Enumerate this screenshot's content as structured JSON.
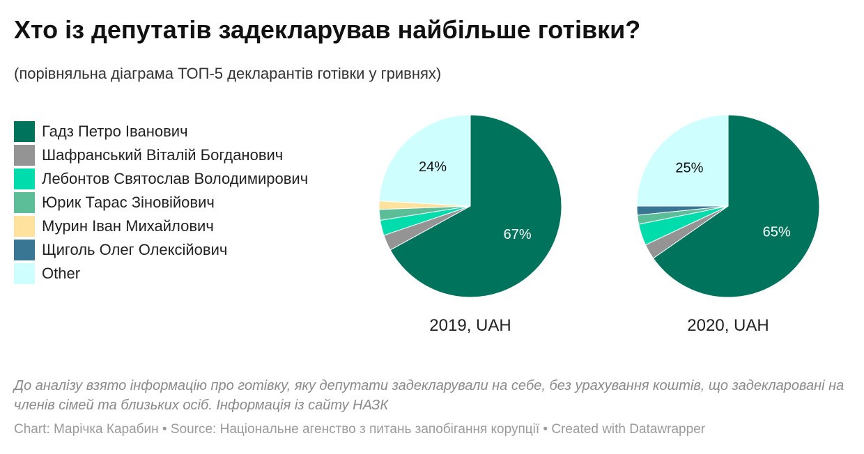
{
  "title": "Хто із депутатів задекларував найбільше готівки?",
  "subtitle": "(порівняльна діаграма ТОП-5 декларантів готівки у гривнях)",
  "legend": [
    {
      "label": "Гадз Петро Іванович",
      "color": "#00735c"
    },
    {
      "label": "Шафранський Віталій Богданович",
      "color": "#949494"
    },
    {
      "label": "Лебонтов Святослав Володимирович",
      "color": "#00dcab"
    },
    {
      "label": "Юрик Тарас Зіновійович",
      "color": "#5cbd99"
    },
    {
      "label": "Мурин Іван Михайлович",
      "color": "#ffe29d"
    },
    {
      "label": "Щиголь Олег Олексійович",
      "color": "#387693"
    },
    {
      "label": "Other",
      "color": "#cefefd"
    }
  ],
  "chart_data": [
    {
      "type": "pie",
      "title": "2019, UAH",
      "slices": [
        {
          "name": "Гадз Петро Іванович",
          "value": 67,
          "label": "67%"
        },
        {
          "name": "Шафранський Віталій Богданович",
          "value": 2.8
        },
        {
          "name": "Лебонтов Святослав Володимирович",
          "value": 2.7
        },
        {
          "name": "Юрик Тарас Зіновійович",
          "value": 1.9
        },
        {
          "name": "Мурин Іван Михайлович",
          "value": 1.5
        },
        {
          "name": "Щиголь Олег Олексійович",
          "value": 0
        },
        {
          "name": "Other",
          "value": 24.1,
          "label": "24%"
        }
      ]
    },
    {
      "type": "pie",
      "title": "2020, UAH",
      "slices": [
        {
          "name": "Гадз Петро Іванович",
          "value": 65.3,
          "label": "65%"
        },
        {
          "name": "Шафранський Віталій Богданович",
          "value": 2.7
        },
        {
          "name": "Лебонтов Святослав Володимирович",
          "value": 3.8
        },
        {
          "name": "Юрик Тарас Зіновійович",
          "value": 1.6
        },
        {
          "name": "Мурин Іван Михайлович",
          "value": 0
        },
        {
          "name": "Щиголь Олег Олексійович",
          "value": 1.6
        },
        {
          "name": "Other",
          "value": 25,
          "label": "25%"
        }
      ]
    }
  ],
  "notes": "До аналізу взято інформацію про готівку, яку депутати задекларували на себе, без урахування коштів, що задекларовані на членів сімей та близьких осіб. Інформація із сайту НАЗК",
  "footer": "Chart: Марічка Карабин • Source: Національне агенство з питань запобігання корупції • Created with Datawrapper"
}
